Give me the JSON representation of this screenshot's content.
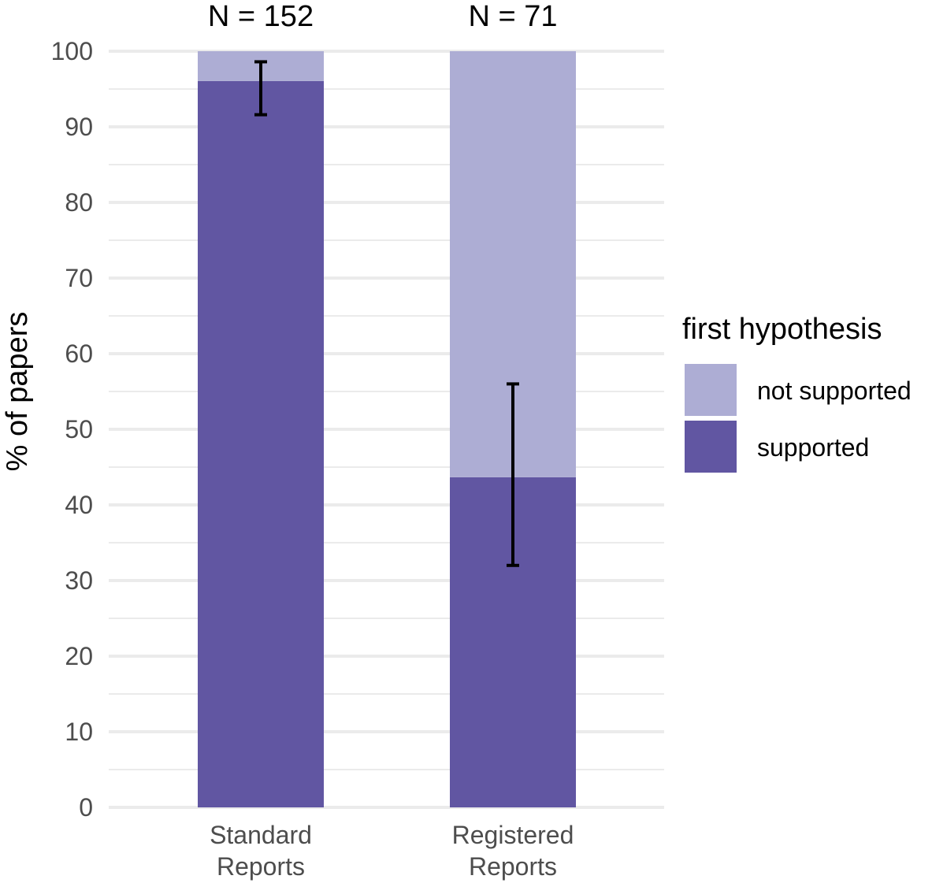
{
  "chart_data": {
    "type": "bar",
    "stacked": true,
    "categories": [
      [
        "Standard",
        "Reports"
      ],
      [
        "Registered",
        "Reports"
      ]
    ],
    "annotations": [
      "N = 152",
      "N = 71"
    ],
    "ylabel": "% of papers",
    "ylim": [
      0,
      100
    ],
    "yticks": [
      0,
      10,
      20,
      30,
      40,
      50,
      60,
      70,
      80,
      90,
      100
    ],
    "grid": true,
    "series": [
      {
        "name": "supported",
        "color": "#6156a2",
        "values": [
          96.05,
          43.66
        ]
      },
      {
        "name": "not supported",
        "color": "#adadd4",
        "values": [
          3.95,
          56.34
        ]
      }
    ],
    "error_bars": [
      {
        "low": 91.6,
        "high": 98.6
      },
      {
        "low": 32.0,
        "high": 56.0
      }
    ],
    "legend": {
      "title": "first hypothesis",
      "position": "right",
      "items": [
        {
          "label": "not supported",
          "color": "#adadd4"
        },
        {
          "label": "supported",
          "color": "#6156a2"
        }
      ]
    }
  }
}
